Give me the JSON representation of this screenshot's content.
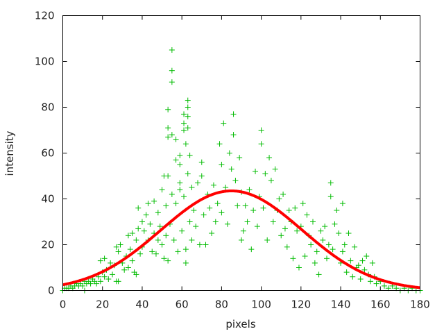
{
  "chart_data": {
    "type": "scatter",
    "title": "",
    "xlabel": "pixels",
    "ylabel": "intensity",
    "xlim": [
      0,
      180
    ],
    "ylim": [
      0,
      120
    ],
    "xticks": [
      0,
      20,
      40,
      60,
      80,
      100,
      120,
      140,
      160,
      180
    ],
    "yticks": [
      0,
      20,
      40,
      60,
      80,
      100,
      120
    ],
    "grid": false,
    "legend": "none",
    "colors": {
      "points": "#00bb00",
      "fit": "#ff0000",
      "axes": "#000000"
    },
    "series": [
      {
        "type": "scatter",
        "marker": "plus",
        "points": [
          [
            0,
            0
          ],
          [
            1,
            1
          ],
          [
            2,
            1
          ],
          [
            3,
            1
          ],
          [
            4,
            2
          ],
          [
            5,
            1
          ],
          [
            6,
            2
          ],
          [
            7,
            3
          ],
          [
            8,
            2
          ],
          [
            9,
            3
          ],
          [
            10,
            2
          ],
          [
            11,
            4
          ],
          [
            11,
            0
          ],
          [
            12,
            3
          ],
          [
            13,
            4
          ],
          [
            14,
            3
          ],
          [
            15,
            5
          ],
          [
            16,
            4
          ],
          [
            17,
            3
          ],
          [
            18,
            6
          ],
          [
            19,
            13
          ],
          [
            19,
            4
          ],
          [
            20,
            8
          ],
          [
            21,
            14
          ],
          [
            21,
            6
          ],
          [
            22,
            9
          ],
          [
            23,
            5
          ],
          [
            24,
            12
          ],
          [
            25,
            7
          ],
          [
            26,
            11
          ],
          [
            27,
            19
          ],
          [
            27,
            4
          ],
          [
            28,
            17
          ],
          [
            28,
            4
          ],
          [
            29,
            20
          ],
          [
            30,
            12
          ],
          [
            31,
            9
          ],
          [
            32,
            15
          ],
          [
            33,
            24
          ],
          [
            33,
            10
          ],
          [
            34,
            18
          ],
          [
            35,
            25
          ],
          [
            35,
            13
          ],
          [
            36,
            8
          ],
          [
            37,
            22
          ],
          [
            37,
            7
          ],
          [
            38,
            36
          ],
          [
            38,
            27
          ],
          [
            39,
            16
          ],
          [
            40,
            30
          ],
          [
            40,
            19
          ],
          [
            41,
            26
          ],
          [
            42,
            33
          ],
          [
            43,
            38
          ],
          [
            43,
            22
          ],
          [
            44,
            29
          ],
          [
            45,
            17
          ],
          [
            46,
            39
          ],
          [
            46,
            25
          ],
          [
            47,
            16
          ],
          [
            48,
            34
          ],
          [
            48,
            22
          ],
          [
            49,
            28
          ],
          [
            50,
            44
          ],
          [
            50,
            20
          ],
          [
            51,
            50
          ],
          [
            51,
            14
          ],
          [
            52,
            37
          ],
          [
            52,
            24
          ],
          [
            53,
            79
          ],
          [
            53,
            71
          ],
          [
            53,
            67
          ],
          [
            53,
            50
          ],
          [
            53,
            13
          ],
          [
            54,
            29
          ],
          [
            55,
            105
          ],
          [
            55,
            96
          ],
          [
            55,
            91
          ],
          [
            55,
            68
          ],
          [
            55,
            42
          ],
          [
            56,
            22
          ],
          [
            57,
            66
          ],
          [
            57,
            57
          ],
          [
            57,
            38
          ],
          [
            58,
            17
          ],
          [
            59,
            59
          ],
          [
            59,
            55
          ],
          [
            59,
            47
          ],
          [
            59,
            44
          ],
          [
            60,
            26
          ],
          [
            61,
            77
          ],
          [
            61,
            73
          ],
          [
            61,
            70
          ],
          [
            61,
            41
          ],
          [
            62,
            64
          ],
          [
            62,
            18
          ],
          [
            62,
            12
          ],
          [
            63,
            83
          ],
          [
            63,
            80
          ],
          [
            63,
            76
          ],
          [
            63,
            71
          ],
          [
            63,
            51
          ],
          [
            64,
            59
          ],
          [
            64,
            30
          ],
          [
            65,
            45
          ],
          [
            65,
            22
          ],
          [
            66,
            35
          ],
          [
            67,
            28
          ],
          [
            68,
            47
          ],
          [
            69,
            20
          ],
          [
            70,
            56
          ],
          [
            70,
            50
          ],
          [
            71,
            33
          ],
          [
            72,
            20
          ],
          [
            73,
            42
          ],
          [
            74,
            36
          ],
          [
            75,
            25
          ],
          [
            76,
            46
          ],
          [
            77,
            30
          ],
          [
            78,
            38
          ],
          [
            79,
            64
          ],
          [
            80,
            55
          ],
          [
            80,
            34
          ],
          [
            81,
            73
          ],
          [
            82,
            45
          ],
          [
            83,
            29
          ],
          [
            84,
            60
          ],
          [
            85,
            53
          ],
          [
            86,
            77
          ],
          [
            86,
            68
          ],
          [
            87,
            48
          ],
          [
            88,
            37
          ],
          [
            89,
            58
          ],
          [
            90,
            43
          ],
          [
            90,
            22
          ],
          [
            91,
            26
          ],
          [
            92,
            37
          ],
          [
            93,
            30
          ],
          [
            94,
            44
          ],
          [
            95,
            18
          ],
          [
            96,
            35
          ],
          [
            97,
            52
          ],
          [
            98,
            28
          ],
          [
            99,
            41
          ],
          [
            100,
            70
          ],
          [
            100,
            64
          ],
          [
            101,
            36
          ],
          [
            102,
            51
          ],
          [
            103,
            22
          ],
          [
            104,
            58
          ],
          [
            105,
            48
          ],
          [
            106,
            30
          ],
          [
            107,
            53
          ],
          [
            108,
            35
          ],
          [
            109,
            40
          ],
          [
            110,
            24
          ],
          [
            111,
            42
          ],
          [
            112,
            27
          ],
          [
            113,
            19
          ],
          [
            114,
            35
          ],
          [
            115,
            30
          ],
          [
            116,
            14
          ],
          [
            117,
            36
          ],
          [
            118,
            26
          ],
          [
            119,
            10
          ],
          [
            120,
            28
          ],
          [
            121,
            38
          ],
          [
            122,
            15
          ],
          [
            123,
            33
          ],
          [
            124,
            24
          ],
          [
            125,
            20
          ],
          [
            126,
            30
          ],
          [
            127,
            12
          ],
          [
            128,
            17
          ],
          [
            129,
            7
          ],
          [
            130,
            26
          ],
          [
            131,
            22
          ],
          [
            132,
            28
          ],
          [
            133,
            14
          ],
          [
            134,
            20
          ],
          [
            135,
            47
          ],
          [
            135,
            41
          ],
          [
            136,
            18
          ],
          [
            137,
            29
          ],
          [
            138,
            35
          ],
          [
            139,
            25
          ],
          [
            140,
            12
          ],
          [
            141,
            38
          ],
          [
            141,
            17
          ],
          [
            142,
            20
          ],
          [
            143,
            8
          ],
          [
            144,
            25
          ],
          [
            145,
            13
          ],
          [
            146,
            6
          ],
          [
            147,
            19
          ],
          [
            148,
            10
          ],
          [
            149,
            11
          ],
          [
            150,
            5
          ],
          [
            151,
            13
          ],
          [
            152,
            9
          ],
          [
            153,
            15
          ],
          [
            154,
            7
          ],
          [
            155,
            4
          ],
          [
            156,
            12
          ],
          [
            157,
            6
          ],
          [
            158,
            3
          ],
          [
            160,
            4
          ],
          [
            162,
            2
          ],
          [
            164,
            1
          ],
          [
            166,
            2
          ],
          [
            168,
            1
          ],
          [
            170,
            0
          ],
          [
            172,
            1
          ],
          [
            174,
            0
          ],
          [
            176,
            1
          ],
          [
            178,
            0
          ],
          [
            180,
            0
          ]
        ]
      },
      {
        "type": "line",
        "model": "gaussian",
        "amplitude": 43.5,
        "center": 85,
        "sigma": 35.6
      }
    ]
  }
}
